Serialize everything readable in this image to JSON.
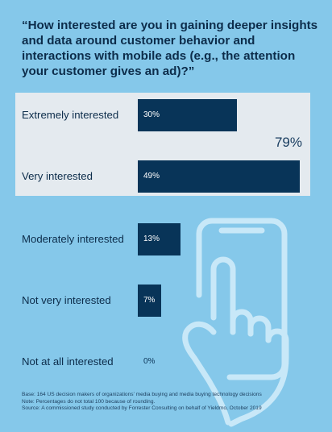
{
  "chart_data": {
    "type": "bar",
    "orientation": "horizontal",
    "title": "“How interested are you in gaining deeper insights and data around customer behavior and interactions with mobile ads (e.g., the attention your customer gives an ad)?”",
    "categories": [
      "Extremely interested",
      "Very interested",
      "Moderately interested",
      "Not very interested",
      "Not at all interested"
    ],
    "values": [
      30,
      49,
      13,
      7,
      0
    ],
    "value_labels": [
      "30%",
      "49%",
      "13%",
      "7%",
      "0%"
    ],
    "combined_total_label": "79%",
    "xlim": [
      0,
      50
    ]
  },
  "colors": {
    "background": "#85c8ea",
    "highlight": "#e4eaef",
    "bar": "#083458",
    "text": "#0c2c4a"
  },
  "illustration": "hand-tapping-phone-icon",
  "footnotes": [
    "Base: 164 US decision makers of organizations’ media buying and media buying technology decisions",
    "Note: Percentages do not total 100 because of rounding.",
    "Source: A commissioned study conducted by Forrester Consulting on behalf of Yieldmo, October 2019"
  ]
}
